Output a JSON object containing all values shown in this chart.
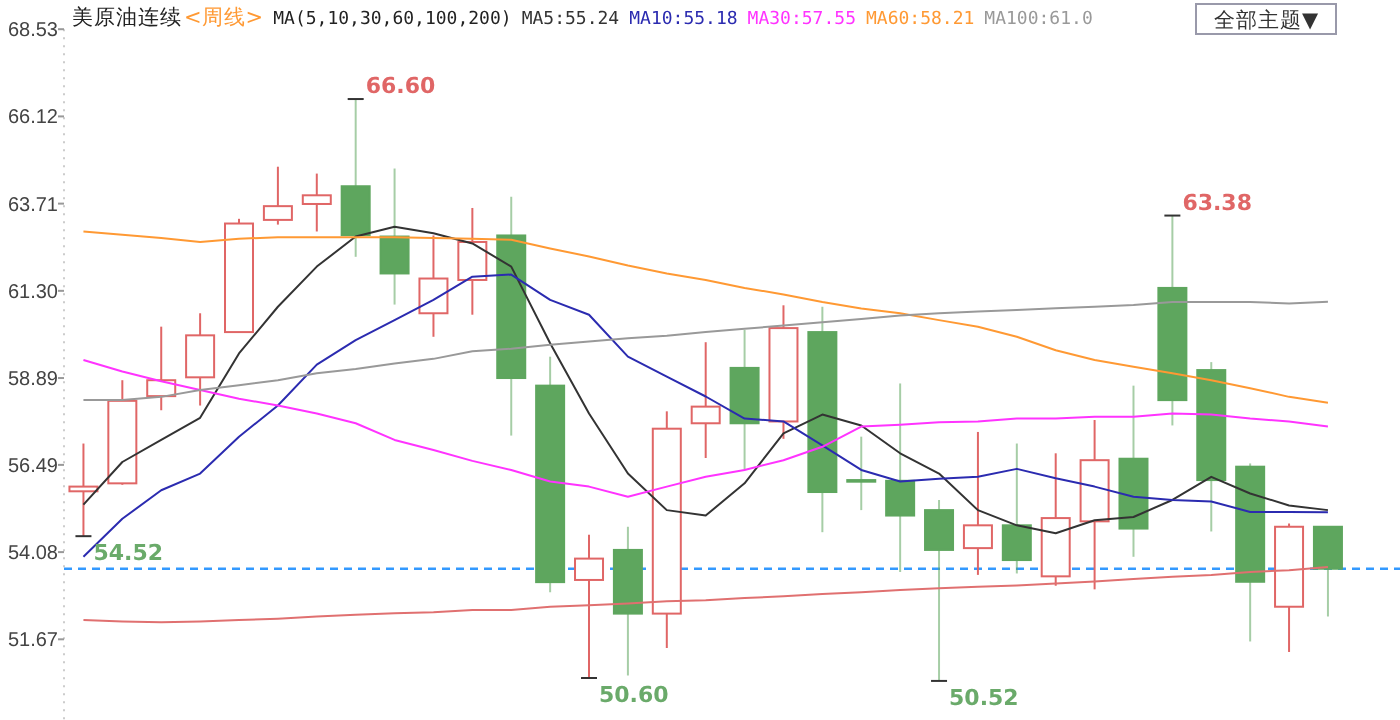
{
  "chart_data": {
    "type": "candlestick",
    "title": "美原油连续",
    "subtitle": "<周线>",
    "legend_title": "MA(5,10,30,60,100,200)",
    "legend": "top",
    "tick_labels": "y",
    "grid": false,
    "categories": [
      null,
      null,
      null,
      null,
      null,
      null,
      null,
      null,
      null,
      null,
      null,
      null,
      null,
      null,
      null,
      null,
      null,
      null,
      null,
      null,
      null,
      null,
      null,
      null,
      null,
      null,
      null,
      null,
      null,
      null,
      null,
      null,
      null
    ],
    "ohlc": [
      [
        55.76,
        57.08,
        54.52,
        55.89
      ],
      [
        55.98,
        58.83,
        55.94,
        58.26
      ],
      [
        58.39,
        60.31,
        58.0,
        58.83
      ],
      [
        58.91,
        60.68,
        58.13,
        60.07
      ],
      [
        60.16,
        63.29,
        60.16,
        63.16
      ],
      [
        63.26,
        64.73,
        63.13,
        63.64
      ],
      [
        63.7,
        64.54,
        62.94,
        63.94
      ],
      [
        64.19,
        66.6,
        62.24,
        62.84
      ],
      [
        62.8,
        64.68,
        60.92,
        61.78
      ],
      [
        60.68,
        62.83,
        60.03,
        61.64
      ],
      [
        61.6,
        63.59,
        60.64,
        62.65
      ],
      [
        62.83,
        63.9,
        57.3,
        58.89
      ],
      [
        58.68,
        59.48,
        52.97,
        53.25
      ],
      [
        53.31,
        54.56,
        50.6,
        53.9
      ],
      [
        54.14,
        54.78,
        50.67,
        52.38
      ],
      [
        52.38,
        57.97,
        51.43,
        57.49
      ],
      [
        57.64,
        59.88,
        56.68,
        58.1
      ],
      [
        59.17,
        60.22,
        56.35,
        57.64
      ],
      [
        57.69,
        60.9,
        57.21,
        60.27
      ],
      [
        60.16,
        60.86,
        54.63,
        55.74
      ],
      [
        56.07,
        57.27,
        55.24,
        56.07
      ],
      [
        56.05,
        58.74,
        53.53,
        55.09
      ],
      [
        55.24,
        55.52,
        50.52,
        54.14
      ],
      [
        54.19,
        57.4,
        53.45,
        54.82
      ],
      [
        54.82,
        57.08,
        53.49,
        53.86
      ],
      [
        53.41,
        56.81,
        53.15,
        55.02
      ],
      [
        54.93,
        57.73,
        53.05,
        56.62
      ],
      [
        56.66,
        58.68,
        53.95,
        54.73
      ],
      [
        61.38,
        63.38,
        57.58,
        58.28
      ],
      [
        59.11,
        59.33,
        54.65,
        56.07
      ],
      [
        56.44,
        56.53,
        51.61,
        53.26
      ],
      [
        52.57,
        54.87,
        51.32,
        54.78
      ],
      [
        54.78,
        54.78,
        52.3,
        53.62
      ]
    ],
    "colors": [
      "#e06666",
      "#e06666",
      "#e06666",
      "#e06666",
      "#e06666",
      "#e06666",
      "#e06666",
      "#5ea65e",
      "#5ea65e",
      "#e06666",
      "#e06666",
      "#5ea65e",
      "#5ea65e",
      "#e06666",
      "#5ea65e",
      "#e06666",
      "#e06666",
      "#5ea65e",
      "#e06666",
      "#5ea65e",
      "#5ea65e",
      "#5ea65e",
      "#5ea65e",
      "#e06666",
      "#5ea65e",
      "#e06666",
      "#e06666",
      "#5ea65e",
      "#5ea65e",
      "#5ea65e",
      "#5ea65e",
      "#e06666",
      "#5ea65e"
    ],
    "series": [
      {
        "type": "line",
        "name": "MA5:55.24",
        "color": "#333333",
        "values": [
          55.39,
          56.57,
          57.18,
          57.79,
          59.57,
          60.86,
          61.97,
          62.8,
          63.07,
          62.89,
          62.61,
          61.97,
          59.85,
          57.91,
          56.25,
          55.24,
          55.09,
          55.98,
          57.36,
          57.88,
          57.58,
          56.81,
          56.25,
          55.24,
          54.82,
          54.6,
          54.96,
          55.05,
          55.52,
          56.16,
          55.7,
          55.37,
          55.24
        ]
      },
      {
        "type": "line",
        "name": "MA10:55.18",
        "color": "#2b2bb0",
        "values": [
          53.95,
          55.0,
          55.79,
          56.25,
          57.27,
          58.13,
          59.26,
          59.94,
          60.49,
          61.05,
          61.69,
          61.75,
          61.05,
          60.64,
          59.48,
          58.93,
          58.38,
          57.77,
          57.69,
          57.03,
          56.35,
          56.03,
          56.11,
          56.16,
          56.38,
          56.12,
          55.89,
          55.61,
          55.52,
          55.48,
          55.19,
          55.19,
          55.18
        ]
      },
      {
        "type": "line",
        "name": "MA30:57.55",
        "color": "#ff33ff",
        "values": [
          59.39,
          59.07,
          58.8,
          58.56,
          58.32,
          58.13,
          57.91,
          57.64,
          57.18,
          56.9,
          56.6,
          56.35,
          56.03,
          55.89,
          55.61,
          55.89,
          56.16,
          56.35,
          56.62,
          56.99,
          57.55,
          57.6,
          57.67,
          57.69,
          57.77,
          57.77,
          57.82,
          57.82,
          57.91,
          57.88,
          57.77,
          57.69,
          57.55
        ]
      },
      {
        "type": "line",
        "name": "MA60:58.21",
        "color": "#ff9933",
        "values": [
          62.94,
          62.85,
          62.76,
          62.65,
          62.74,
          62.78,
          62.78,
          62.78,
          62.78,
          62.76,
          62.74,
          62.71,
          62.47,
          62.25,
          62.0,
          61.78,
          61.6,
          61.38,
          61.2,
          60.99,
          60.81,
          60.68,
          60.49,
          60.31,
          60.03,
          59.66,
          59.39,
          59.2,
          59.02,
          58.83,
          58.61,
          58.37,
          58.21
        ]
      },
      {
        "type": "line",
        "name": "MA100:61.0",
        "color": "#999999",
        "values": [
          58.28,
          58.28,
          58.37,
          58.56,
          58.69,
          58.83,
          59.02,
          59.14,
          59.29,
          59.42,
          59.63,
          59.7,
          59.81,
          59.9,
          59.99,
          60.06,
          60.16,
          60.25,
          60.34,
          60.43,
          60.52,
          60.62,
          60.68,
          60.73,
          60.77,
          60.82,
          60.86,
          60.91,
          60.99,
          60.99,
          60.99,
          60.95,
          61.0
        ]
      },
      {
        "type": "line",
        "color": "#e07070",
        "values": [
          52.2,
          52.16,
          52.14,
          52.16,
          52.2,
          52.24,
          52.3,
          52.35,
          52.39,
          52.42,
          52.48,
          52.48,
          52.57,
          52.61,
          52.66,
          52.72,
          52.75,
          52.81,
          52.86,
          52.92,
          52.97,
          53.03,
          53.08,
          53.12,
          53.16,
          53.21,
          53.27,
          53.34,
          53.4,
          53.45,
          53.53,
          53.58,
          53.67
        ]
      }
    ],
    "ylim": [
      49.44,
      68.53
    ],
    "yticks": [
      51.67,
      54.08,
      56.49,
      58.89,
      {
        "value": 61.3,
        "label": "61.30"
      },
      63.71,
      66.12,
      68.53
    ],
    "ref_lines": [
      {
        "axis": "y",
        "value": 53.62,
        "color": "#3399ff",
        "line_style": "dashed"
      }
    ],
    "annotations": [
      "66.60",
      "54.52",
      "50.60",
      "50.52",
      "63.38",
      "全部主题▼"
    ]
  }
}
